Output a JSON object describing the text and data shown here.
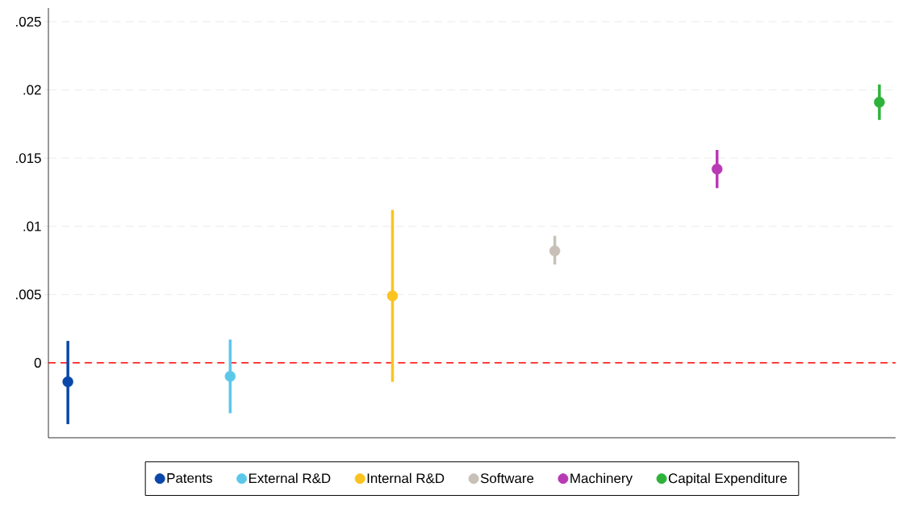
{
  "chart_data": {
    "type": "scatter",
    "categories": [
      null,
      null,
      null,
      null,
      null,
      null
    ],
    "series": [
      {
        "name": "Patents",
        "color": "#0a47a8",
        "values": [
          -0.0014,
          null,
          null,
          null,
          null,
          null
        ],
        "errors": [
          [
            -0.0045,
            0.0016
          ],
          null,
          null,
          null,
          null,
          null
        ]
      },
      {
        "name": "External R&D",
        "color": "#5bc8ea",
        "values": [
          null,
          -0.001,
          null,
          null,
          null,
          null
        ],
        "errors": [
          null,
          [
            -0.0037,
            0.0017
          ],
          null,
          null,
          null,
          null
        ]
      },
      {
        "name": "Internal R&D",
        "color": "#fbc31f",
        "values": [
          null,
          null,
          0.0049,
          null,
          null,
          null
        ],
        "errors": [
          null,
          null,
          [
            -0.0014,
            0.0112
          ],
          null,
          null,
          null
        ]
      },
      {
        "name": "Software",
        "color": "#c8c0b8",
        "values": [
          null,
          null,
          null,
          0.0082,
          null,
          null
        ],
        "errors": [
          null,
          null,
          null,
          [
            0.0072,
            0.0093
          ],
          null,
          null
        ]
      },
      {
        "name": "Machinery",
        "color": "#b83ab5",
        "values": [
          null,
          null,
          null,
          null,
          0.0142,
          null
        ],
        "errors": [
          null,
          null,
          null,
          null,
          [
            0.0128,
            0.0156
          ],
          null
        ]
      },
      {
        "name": "Capital Expenditure",
        "color": "#2eb23a",
        "values": [
          null,
          null,
          null,
          null,
          null,
          0.0191
        ],
        "errors": [
          null,
          null,
          null,
          null,
          null,
          [
            0.0178,
            0.0204
          ]
        ]
      }
    ],
    "ylim": [
      -0.0055,
      0.026
    ],
    "yticks": [
      {
        "value": 0,
        "label": "0"
      },
      {
        "value": 0.005,
        "label": ".005"
      },
      {
        "value": 0.01,
        "label": ".01"
      },
      {
        "value": 0.015,
        "label": ".015"
      },
      {
        "value": 0.02,
        "label": ".02"
      },
      {
        "value": 0.025,
        "label": ".025"
      }
    ],
    "ref_lines": [
      {
        "axis": "y",
        "value": 0,
        "color": "#ff0000",
        "line_style": "dashed"
      }
    ],
    "grid": "y",
    "legend": "bottom",
    "marker": "circle",
    "tick_labels": "y"
  }
}
